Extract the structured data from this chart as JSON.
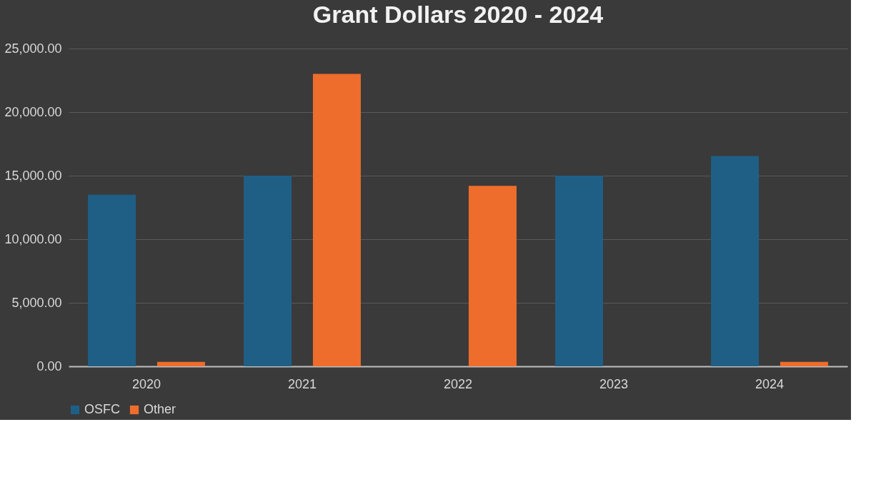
{
  "chart_data": {
    "type": "bar",
    "title": "Grant Dollars 2020 - 2024",
    "categories": [
      "2020",
      "2021",
      "2022",
      "2023",
      "2024"
    ],
    "series": [
      {
        "name": "OSFC",
        "color": "#1f5f86",
        "values": [
          13500,
          15000,
          0,
          15000,
          16550
        ]
      },
      {
        "name": "Other",
        "color": "#ee6d2c",
        "values": [
          350,
          23000,
          14200,
          0,
          350
        ]
      }
    ],
    "ylim": [
      0,
      25000
    ],
    "yticks": [
      {
        "value": 0,
        "label": "0.00"
      },
      {
        "value": 5000,
        "label": "5,000.00"
      },
      {
        "value": 10000,
        "label": "10,000.00"
      },
      {
        "value": 15000,
        "label": "15,000.00"
      },
      {
        "value": 20000,
        "label": "20,000.00"
      },
      {
        "value": 25000,
        "label": "25,000.00"
      }
    ],
    "grid": "y",
    "legend": "bottom"
  }
}
